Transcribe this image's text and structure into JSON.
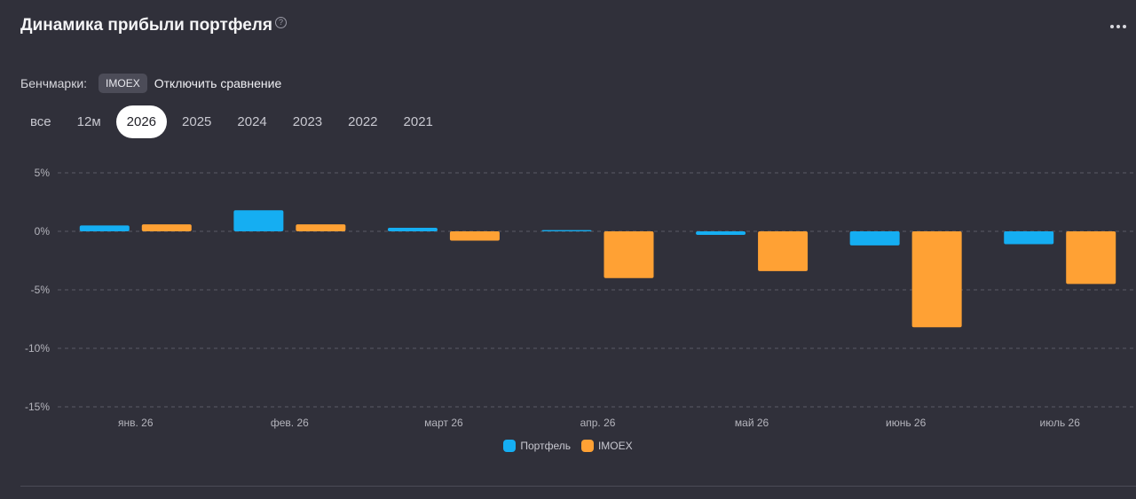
{
  "header": {
    "title": "Динамика прибыли портфеля",
    "help_icon": "question-circle-icon",
    "more_icon": "more-dots-icon"
  },
  "benchmarks": {
    "label": "Бенчмарки:",
    "selected": "IMOEX",
    "disable_label": "Отключить сравнение"
  },
  "period_tabs": [
    {
      "label": "все",
      "active": false
    },
    {
      "label": "12м",
      "active": false
    },
    {
      "label": "2026",
      "active": true
    },
    {
      "label": "2025",
      "active": false
    },
    {
      "label": "2024",
      "active": false
    },
    {
      "label": "2023",
      "active": false
    },
    {
      "label": "2022",
      "active": false
    },
    {
      "label": "2021",
      "active": false
    }
  ],
  "colors": {
    "portfolio": "#15aef2",
    "imoex": "#ffa134",
    "grid": "#5a5a66"
  },
  "chart_data": {
    "type": "bar",
    "categories": [
      "янв. 26",
      "фев. 26",
      "март 26",
      "апр. 26",
      "май 26",
      "июнь 26",
      "июль 26"
    ],
    "series": [
      {
        "name": "Портфель",
        "values": [
          0.5,
          1.8,
          0.3,
          0.1,
          -0.3,
          -1.2,
          -1.1
        ]
      },
      {
        "name": "IMOEX",
        "values": [
          0.6,
          0.6,
          -0.8,
          -4.0,
          -3.4,
          -8.2,
          -4.5
        ]
      }
    ],
    "y_ticks": [
      5,
      0,
      -5,
      -10,
      -15
    ],
    "y_tick_labels": [
      "5%",
      "0%",
      "-5%",
      "-10%",
      "-15%"
    ],
    "ylim": [
      -15,
      5
    ],
    "grid": true,
    "legend_position": "bottom-center"
  }
}
